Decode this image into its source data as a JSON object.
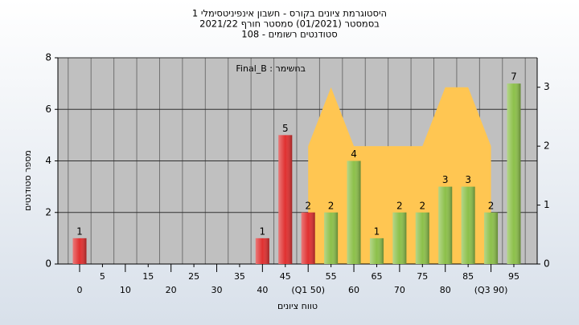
{
  "chart_data": {
    "type": "bar",
    "title": [
      "היסטוגרמת ציונים בקורס - חשבון אינפיניטסימלי 1",
      "בסמסטר  (01/2021)  סמסטר חורף 2021/22",
      "סטודנטים רשומים - 108"
    ],
    "annotation": "Final_B : בחשימר",
    "xlabel": "טווח ציונים",
    "ylabel": "מספר סטודנטים",
    "categories": [
      "0",
      "5",
      "10",
      "15",
      "20",
      "25",
      "30",
      "35",
      "40",
      "45",
      "(Q1 50)",
      "55",
      "60",
      "65",
      "70",
      "75",
      "80",
      "85",
      "(Q3 90)",
      "95"
    ],
    "values": [
      1,
      0,
      0,
      0,
      0,
      0,
      0,
      0,
      1,
      5,
      2,
      2,
      4,
      1,
      2,
      2,
      3,
      3,
      2,
      7
    ],
    "bar_colors": [
      "#e03030",
      "#e03030",
      "#e03030",
      "#e03030",
      "#e03030",
      "#e03030",
      "#e03030",
      "#e03030",
      "#e03030",
      "#e03030",
      "#e03030",
      "#8cc04a",
      "#8cc04a",
      "#8cc04a",
      "#8cc04a",
      "#8cc04a",
      "#8cc04a",
      "#8cc04a",
      "#8cc04a",
      "#8cc04a"
    ],
    "series": [
      {
        "axis": "y2",
        "color": "#ffc652",
        "values": [
          null,
          null,
          null,
          null,
          null,
          null,
          null,
          null,
          null,
          null,
          2,
          3,
          2,
          2,
          2,
          2,
          3,
          3,
          2,
          null
        ]
      }
    ],
    "ylim": [
      0,
      8
    ],
    "yticks": [
      0,
      2,
      4,
      6,
      8
    ],
    "y2lim": [
      0,
      3.5
    ],
    "y2ticks": [
      0,
      1,
      2,
      3
    ],
    "grid": true
  }
}
